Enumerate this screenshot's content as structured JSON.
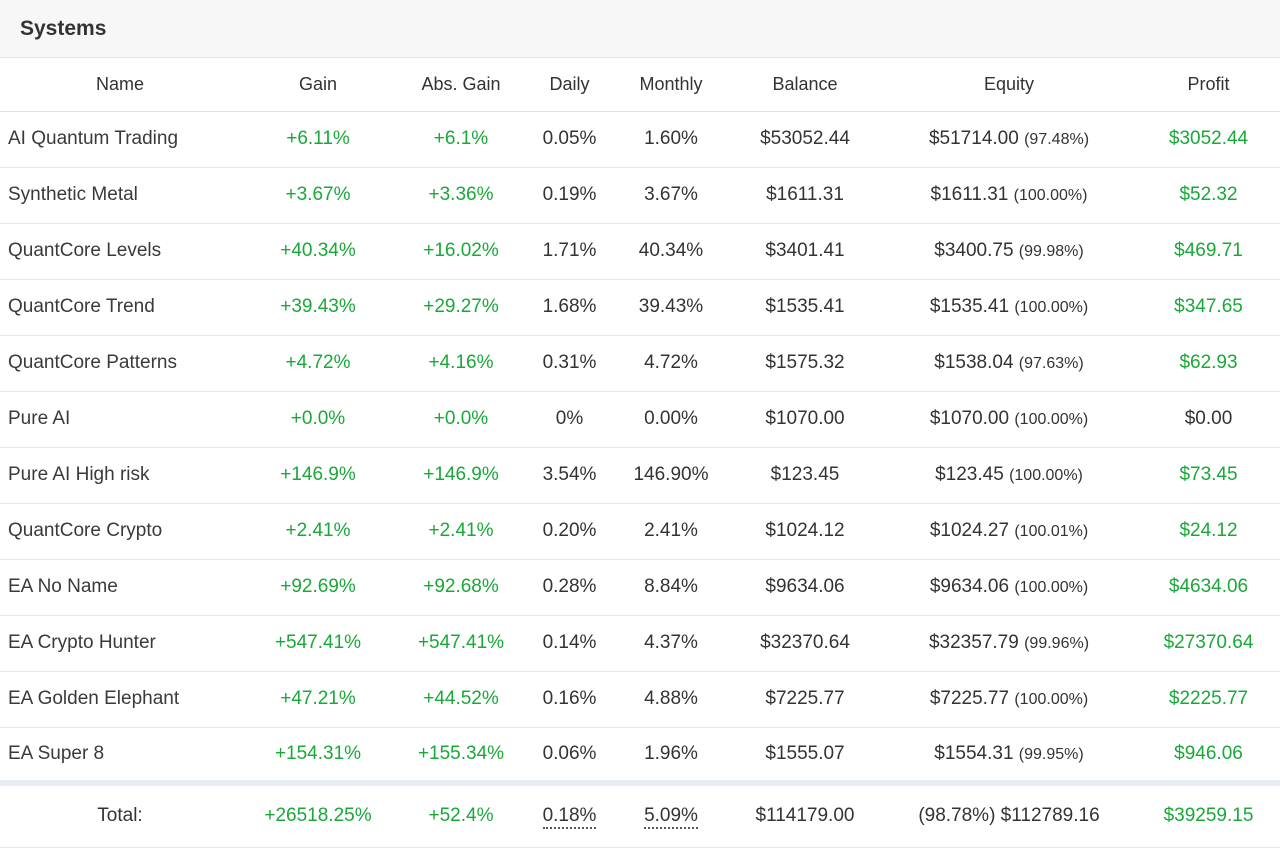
{
  "panel": {
    "title": "Systems"
  },
  "columns": [
    "Name",
    "Gain",
    "Abs. Gain",
    "Daily",
    "Monthly",
    "Balance",
    "Equity",
    "Profit"
  ],
  "rows": [
    {
      "name": "AI Quantum Trading",
      "gain": "+6.11%",
      "abs_gain": "+6.1%",
      "daily": "0.05%",
      "monthly": "1.60%",
      "balance": "$53052.44",
      "equity": "$51714.00",
      "equity_pct": "(97.48%)",
      "profit": "$3052.44",
      "profit_positive": true
    },
    {
      "name": "Synthetic Metal",
      "gain": "+3.67%",
      "abs_gain": "+3.36%",
      "daily": "0.19%",
      "monthly": "3.67%",
      "balance": "$1611.31",
      "equity": "$1611.31",
      "equity_pct": "(100.00%)",
      "profit": "$52.32",
      "profit_positive": true
    },
    {
      "name": "QuantCore Levels",
      "gain": "+40.34%",
      "abs_gain": "+16.02%",
      "daily": "1.71%",
      "monthly": "40.34%",
      "balance": "$3401.41",
      "equity": "$3400.75",
      "equity_pct": "(99.98%)",
      "profit": "$469.71",
      "profit_positive": true
    },
    {
      "name": "QuantCore Trend",
      "gain": "+39.43%",
      "abs_gain": "+29.27%",
      "daily": "1.68%",
      "monthly": "39.43%",
      "balance": "$1535.41",
      "equity": "$1535.41",
      "equity_pct": "(100.00%)",
      "profit": "$347.65",
      "profit_positive": true
    },
    {
      "name": "QuantCore Patterns",
      "gain": "+4.72%",
      "abs_gain": "+4.16%",
      "daily": "0.31%",
      "monthly": "4.72%",
      "balance": "$1575.32",
      "equity": "$1538.04",
      "equity_pct": "(97.63%)",
      "profit": "$62.93",
      "profit_positive": true
    },
    {
      "name": "Pure AI",
      "gain": "+0.0%",
      "abs_gain": "+0.0%",
      "daily": "0%",
      "monthly": "0.00%",
      "balance": "$1070.00",
      "equity": "$1070.00",
      "equity_pct": "(100.00%)",
      "profit": "$0.00",
      "profit_positive": false
    },
    {
      "name": "Pure AI High risk",
      "gain": "+146.9%",
      "abs_gain": "+146.9%",
      "daily": "3.54%",
      "monthly": "146.90%",
      "balance": "$123.45",
      "equity": "$123.45",
      "equity_pct": "(100.00%)",
      "profit": "$73.45",
      "profit_positive": true
    },
    {
      "name": "QuantCore Crypto",
      "gain": "+2.41%",
      "abs_gain": "+2.41%",
      "daily": "0.20%",
      "monthly": "2.41%",
      "balance": "$1024.12",
      "equity": "$1024.27",
      "equity_pct": "(100.01%)",
      "profit": "$24.12",
      "profit_positive": true
    },
    {
      "name": "EA No Name",
      "gain": "+92.69%",
      "abs_gain": "+92.68%",
      "daily": "0.28%",
      "monthly": "8.84%",
      "balance": "$9634.06",
      "equity": "$9634.06",
      "equity_pct": "(100.00%)",
      "profit": "$4634.06",
      "profit_positive": true
    },
    {
      "name": "EA Crypto Hunter",
      "gain": "+547.41%",
      "abs_gain": "+547.41%",
      "daily": "0.14%",
      "monthly": "4.37%",
      "balance": "$32370.64",
      "equity": "$32357.79",
      "equity_pct": "(99.96%)",
      "profit": "$27370.64",
      "profit_positive": true
    },
    {
      "name": "EA Golden Elephant",
      "gain": "+47.21%",
      "abs_gain": "+44.52%",
      "daily": "0.16%",
      "monthly": "4.88%",
      "balance": "$7225.77",
      "equity": "$7225.77",
      "equity_pct": "(100.00%)",
      "profit": "$2225.77",
      "profit_positive": true
    },
    {
      "name": "EA Super 8",
      "gain": "+154.31%",
      "abs_gain": "+155.34%",
      "daily": "0.06%",
      "monthly": "1.96%",
      "balance": "$1555.07",
      "equity": "$1554.31",
      "equity_pct": "(99.95%)",
      "profit": "$946.06",
      "profit_positive": true
    }
  ],
  "total": {
    "label": "Total:",
    "gain": "+26518.25%",
    "abs_gain": "+52.4%",
    "daily": "0.18%",
    "monthly": "5.09%",
    "balance": "$114179.00",
    "equity": "(98.78%) $112789.16",
    "profit": "$39259.15"
  },
  "colors": {
    "positive": "#1aa839",
    "text": "#333333",
    "header_bg": "#f7f7f7",
    "total_separator": "#e8eef3"
  }
}
